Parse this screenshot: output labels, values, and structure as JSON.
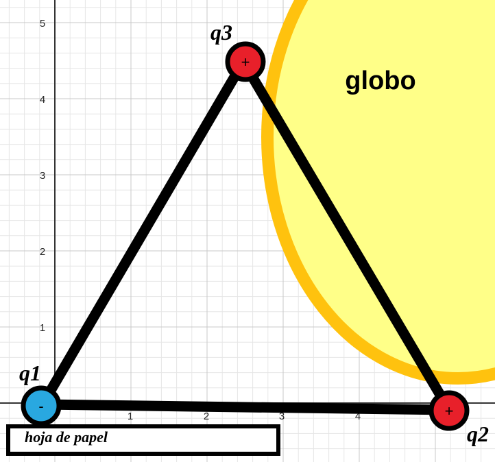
{
  "diagram": {
    "x_ticks": [
      "1",
      "2",
      "3",
      "4"
    ],
    "y_ticks": [
      "1",
      "2",
      "3",
      "4",
      "5"
    ],
    "balloon": {
      "label": "globo",
      "fill": "#ffff88",
      "stroke": "#ffc20e"
    },
    "paper": {
      "label": "hoja de papel"
    },
    "charges": {
      "q1": {
        "name": "q1",
        "sign": "-",
        "color": "#29a8e0",
        "x": 0,
        "y": 0
      },
      "q2": {
        "name": "q2",
        "sign": "+",
        "color": "#e8202a",
        "x": 5,
        "y": 0
      },
      "q3": {
        "name": "q3",
        "sign": "+",
        "color": "#e8202a",
        "x": 2.5,
        "y": 4.5
      }
    },
    "grid_color_major": "#c8c8c8",
    "grid_color_minor": "#e6e6e6"
  }
}
